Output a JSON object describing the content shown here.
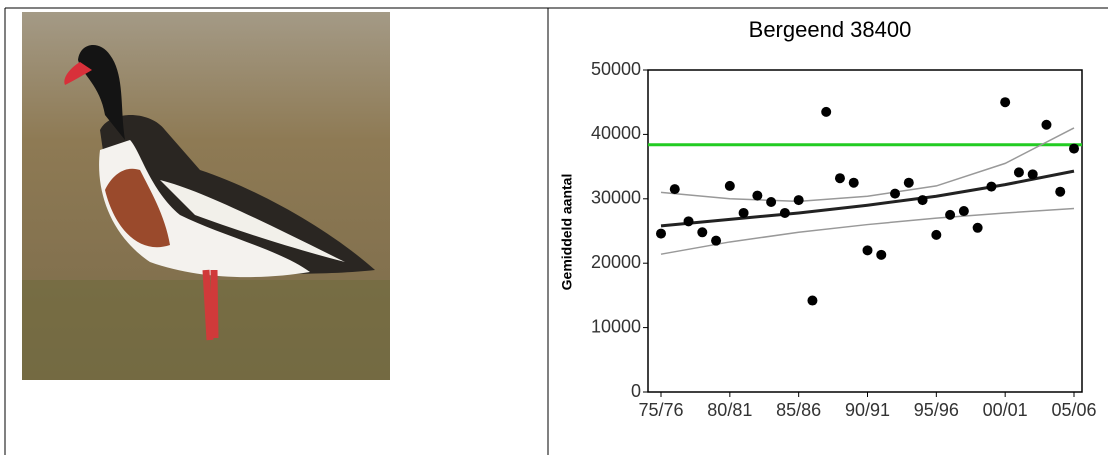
{
  "chart_data": {
    "type": "scatter",
    "title": "Bergeend 38400",
    "y_label": "Gemiddeld aantal",
    "categories": [
      "75/76",
      null,
      null,
      null,
      null,
      "80/81",
      null,
      null,
      null,
      null,
      "85/86",
      null,
      null,
      null,
      null,
      "90/91",
      null,
      null,
      null,
      null,
      "95/96",
      null,
      null,
      null,
      null,
      "00/01",
      null,
      null,
      null,
      null,
      "05/06"
    ],
    "values": [
      24600,
      31500,
      26500,
      24800,
      23500,
      32000,
      27800,
      30500,
      29500,
      27800,
      29800,
      14200,
      43500,
      33200,
      32500,
      22000,
      21300,
      30800,
      32500,
      29800,
      24400,
      27500,
      28100,
      25500,
      31900,
      45000,
      34100,
      33800,
      41500,
      31100,
      37800
    ],
    "color": "#000000",
    "ylim": [
      0,
      50000
    ],
    "yticks": [
      0,
      10000,
      20000,
      30000,
      40000,
      50000
    ],
    "reference_line": {
      "value": 38400,
      "color": "#22cc22"
    },
    "trend_x": [
      0,
      5,
      10,
      15,
      20,
      25,
      30
    ],
    "trend_lines": [
      {
        "color": "#999999",
        "width": 1.5,
        "values": [
          31000,
          30000,
          29600,
          30400,
          32000,
          35500,
          41000
        ]
      },
      {
        "color": "#222222",
        "width": 3,
        "values": [
          25800,
          26800,
          27800,
          29000,
          30400,
          32200,
          34300
        ]
      },
      {
        "color": "#999999",
        "width": 1.5,
        "values": [
          21400,
          23300,
          24800,
          26000,
          27000,
          27800,
          28500
        ]
      }
    ]
  }
}
